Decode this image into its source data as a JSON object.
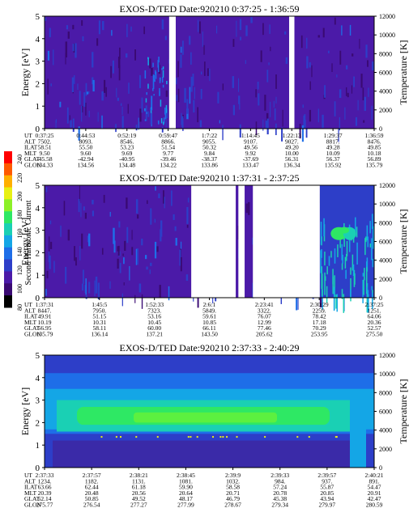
{
  "chart_data": {
    "type": "heatmap",
    "colorbar": {
      "label": "Second Harmonic Current",
      "ticks": [
        "80",
        "100",
        "120",
        "140",
        "160",
        "180",
        "200",
        "220",
        "240"
      ],
      "colors": [
        "#000000",
        "#3a0a73",
        "#4b1aa8",
        "#2d3ec8",
        "#1e6ee8",
        "#14a6e6",
        "#1ad0b4",
        "#2ee864",
        "#8cf028",
        "#e8f014",
        "#ffb000",
        "#ff5a00",
        "#ff0000"
      ]
    },
    "panels": [
      {
        "title": "EXOS-D/TED   Date:920210   0:37:25 - 1:36:59",
        "ylabel": "Energy [eV]",
        "y2label": "Temperature [K]",
        "ylim": [
          0,
          5
        ],
        "y2lim": [
          0,
          12000
        ],
        "yticks": [
          "0",
          "1",
          "2",
          "3",
          "4",
          "5"
        ],
        "y2ticks": [
          "0",
          "2000",
          "4000",
          "6000",
          "8000",
          "10000",
          "12000"
        ],
        "xticks": [
          "0:37:25",
          "0:44:53",
          "0:52:19",
          "0:59:47",
          "1:7:22",
          "1:14:45",
          "1:22:13",
          "1:29:37",
          "1:36:59"
        ],
        "gaps": [
          [
            0.378,
            0.398
          ],
          [
            0.742,
            0.758
          ]
        ],
        "rows": [
          {
            "label": "UT",
            "values": [
              "0:37:25",
              "0:44:53",
              "0:52:19",
              "0:59:47",
              "1:7:22",
              "1:14:45",
              "1:22:13",
              "1:29:37",
              "1:36:59"
            ]
          },
          {
            "label": "ALT",
            "values": [
              "7502.",
              "8093.",
              "8546.",
              "8866.",
              "9055.",
              "9107.",
              "9027.",
              "8817.",
              "8476."
            ]
          },
          {
            "label": "ILAT",
            "values": [
              "58.51",
              "55.50",
              "53.23",
              "51.54",
              "50.32",
              "49.56",
              "49.20",
              "49.28",
              "49.85"
            ]
          },
          {
            "label": "MLT",
            "values": [
              "9.50",
              "9.60",
              "9.69",
              "9.77",
              "9.84",
              "9.92",
              "10.00",
              "10.09",
              "10.18"
            ]
          },
          {
            "label": "GLAT",
            "values": [
              "-45.58",
              "-42.94",
              "-40.95",
              "-39.46",
              "-38.37",
              "-37.69",
              "56.31",
              "56.37",
              "56.89"
            ]
          },
          {
            "label": "GLON",
            "values": [
              "134.33",
              "134.56",
              "134.48",
              "134.22",
              "133.86",
              "133.47",
              "136.34",
              "135.92",
              "135.79"
            ]
          }
        ]
      },
      {
        "title": "EXOS-D/TED   Date:920210   1:37:31 - 2:37:25",
        "ylabel": "Energy [eV]",
        "y2label": "Temperature [K]",
        "ylim": [
          0,
          5
        ],
        "y2lim": [
          0,
          12000
        ],
        "yticks": [
          "0",
          "1",
          "2",
          "3",
          "4",
          "5"
        ],
        "y2ticks": [
          "0",
          "2000",
          "4000",
          "6000",
          "8000",
          "10000",
          "12000"
        ],
        "xticks": [
          "1:37:31",
          "1:45:5",
          "1:52:33",
          "2:6:1",
          "2:23:41",
          "2:30:29",
          "2:37:25"
        ],
        "gaps": [
          [
            0.445,
            0.58
          ],
          [
            0.588,
            0.607
          ],
          [
            0.632,
            0.835
          ]
        ],
        "rows": [
          {
            "label": "UT",
            "values": [
              "1:37:31",
              "1:45:5",
              "1:52:33",
              "2:6:1",
              "2:23:41",
              "2:30:29",
              "2:37:25"
            ]
          },
          {
            "label": "ALT",
            "values": [
              "8447.",
              "7950.",
              "7323.",
              "5849.",
              "3322.",
              "2259.",
              "1251."
            ]
          },
          {
            "label": "ILAT",
            "values": [
              "49.91",
              "51.15",
              "53.16",
              "59.61",
              "76.07",
              "78.42",
              "64.06"
            ]
          },
          {
            "label": "MLT",
            "values": [
              "10.19",
              "10.31",
              "10.45",
              "10.85",
              "12.99",
              "17.18",
              "20.36"
            ]
          },
          {
            "label": "GLAT",
            "values": [
              "56.95",
              "58.11",
              "60.00",
              "66.11",
              "77.46",
              "70.29",
              "52.57"
            ]
          },
          {
            "label": "GLON",
            "values": [
              "135.79",
              "136.14",
              "137.21",
              "143.50",
              "205.62",
              "253.95",
              "275.50"
            ]
          }
        ]
      },
      {
        "title": "EXOS-D/TED   Date:920210   2:37:33 - 2:40:29",
        "ylabel": "Energy [eV]",
        "y2label": "Temperature [K]",
        "ylim": [
          0,
          5
        ],
        "y2lim": [
          0,
          12000
        ],
        "yticks": [
          "0",
          "1",
          "2",
          "3",
          "4",
          "5"
        ],
        "y2ticks": [
          "0",
          "2000",
          "4000",
          "6000",
          "8000",
          "10000",
          "12000"
        ],
        "xticks": [
          "2:37:33",
          "2:37:57",
          "2:38:21",
          "2:38:45",
          "2:39:9",
          "2:39:33",
          "2:39:57",
          "2:40:21"
        ],
        "gaps": [],
        "rows": [
          {
            "label": "UT",
            "values": [
              "2:37:33",
              "2:37:57",
              "2:38:21",
              "2:38:45",
              "2:39:9",
              "2:39:33",
              "2:39:57",
              "2:40:21"
            ]
          },
          {
            "label": "ALT",
            "values": [
              "1234.",
              "1182.",
              "1131.",
              "1081.",
              "1032.",
              "984.",
              "937.",
              "891."
            ]
          },
          {
            "label": "ILAT",
            "values": [
              "63.66",
              "62.44",
              "61.18",
              "59.90",
              "58.58",
              "57.24",
              "55.87",
              "54.47"
            ]
          },
          {
            "label": "MLT",
            "values": [
              "20.39",
              "20.48",
              "20.56",
              "20.64",
              "20.71",
              "20.78",
              "20.85",
              "20.91"
            ]
          },
          {
            "label": "GLAT",
            "values": [
              "52.14",
              "50.85",
              "49.52",
              "48.17",
              "46.79",
              "45.38",
              "43.94",
              "42.47"
            ]
          },
          {
            "label": "GLON",
            "values": [
              "275.77",
              "276.54",
              "277.27",
              "277.99",
              "278.67",
              "279.34",
              "279.97",
              "280.59"
            ]
          }
        ]
      }
    ]
  }
}
